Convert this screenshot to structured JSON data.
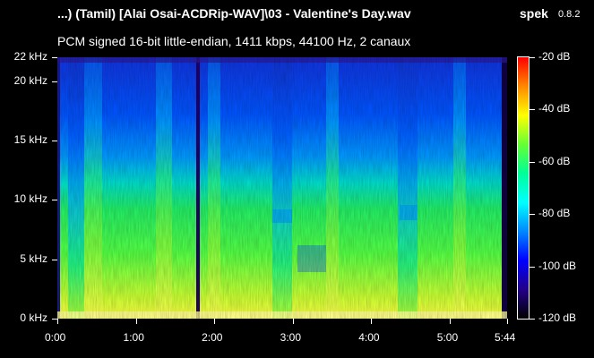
{
  "window": {
    "title": "...) (Tamil) [Alai Osai-ACDRip-WAV]\\03 - Valentine's Day.wav",
    "app_name": "spek",
    "app_version": "0.8.2",
    "info": "PCM signed 16-bit little-endian, 1411 kbps, 44100 Hz, 2 canaux"
  },
  "frequency_axis": {
    "labels": [
      "22 kHz",
      "20 kHz",
      "15 kHz",
      "10 kHz",
      "5 kHz",
      "0 kHz"
    ],
    "values_khz": [
      22,
      20,
      15,
      10,
      5,
      0
    ],
    "max_khz": 22
  },
  "time_axis": {
    "labels": [
      "0:00",
      "1:00",
      "2:00",
      "3:00",
      "4:00",
      "5:00",
      "5:44"
    ],
    "values_s": [
      0,
      60,
      120,
      180,
      240,
      300,
      344
    ],
    "duration_s": 344
  },
  "level_scale": {
    "labels": [
      "-20 dB",
      "-40 dB",
      "-60 dB",
      "-80 dB",
      "-100 dB",
      "-120 dB"
    ],
    "values_db": [
      -20,
      -40,
      -60,
      -80,
      -100,
      -120
    ],
    "max_db": -20,
    "min_db": -120,
    "colors": [
      "#ff0000",
      "#ff8800",
      "#ffff00",
      "#66ff33",
      "#00ff99",
      "#00ffff",
      "#0088ff",
      "#0000ff",
      "#220088",
      "#000000"
    ]
  },
  "colors": {
    "background": "#000000",
    "text": "#ffffff"
  }
}
